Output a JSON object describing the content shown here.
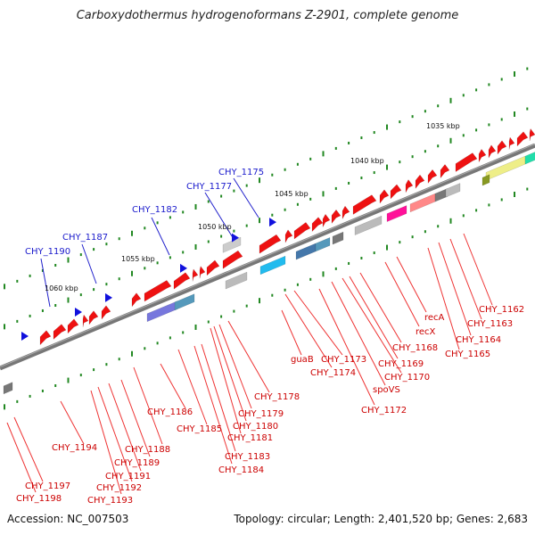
{
  "title": "Carboxydothermus hydrogenoformans Z-2901, complete genome",
  "footer": {
    "accession": "Accession: NC_007503",
    "topology": "Topology: circular; Length: 2,401,520 bp; Genes: 2,683"
  },
  "colors": {
    "gene_forward": "#ee1111",
    "backbone": "#777777",
    "tick_dot": "#228822",
    "label_red": "#cc0000",
    "label_blue": "#1a1acc"
  },
  "kbp_labels": [
    "1035 kbp",
    "1040 kbp",
    "1045 kbp",
    "1050 kbp",
    "1055 kbp",
    "1060 kbp"
  ],
  "red_labels": [
    "CHY_1162",
    "CHY_1163",
    "CHY_1164",
    "CHY_1165",
    "recA",
    "recX",
    "CHY_1168",
    "CHY_1169",
    "CHY_1170",
    "spoVS",
    "CHY_1172",
    "CHY_1173",
    "CHY_1174",
    "guaB",
    "CHY_1178",
    "CHY_1179",
    "CHY_1180",
    "CHY_1181",
    "CHY_1183",
    "CHY_1184",
    "CHY_1185",
    "CHY_1186",
    "CHY_1188",
    "CHY_1189",
    "CHY_1191",
    "CHY_1192",
    "CHY_1193",
    "CHY_1194",
    "CHY_1197",
    "CHY_1198"
  ],
  "blue_labels": [
    "CHY_1175",
    "CHY_1177",
    "CHY_1182",
    "CHY_1187",
    "CHY_1190"
  ]
}
